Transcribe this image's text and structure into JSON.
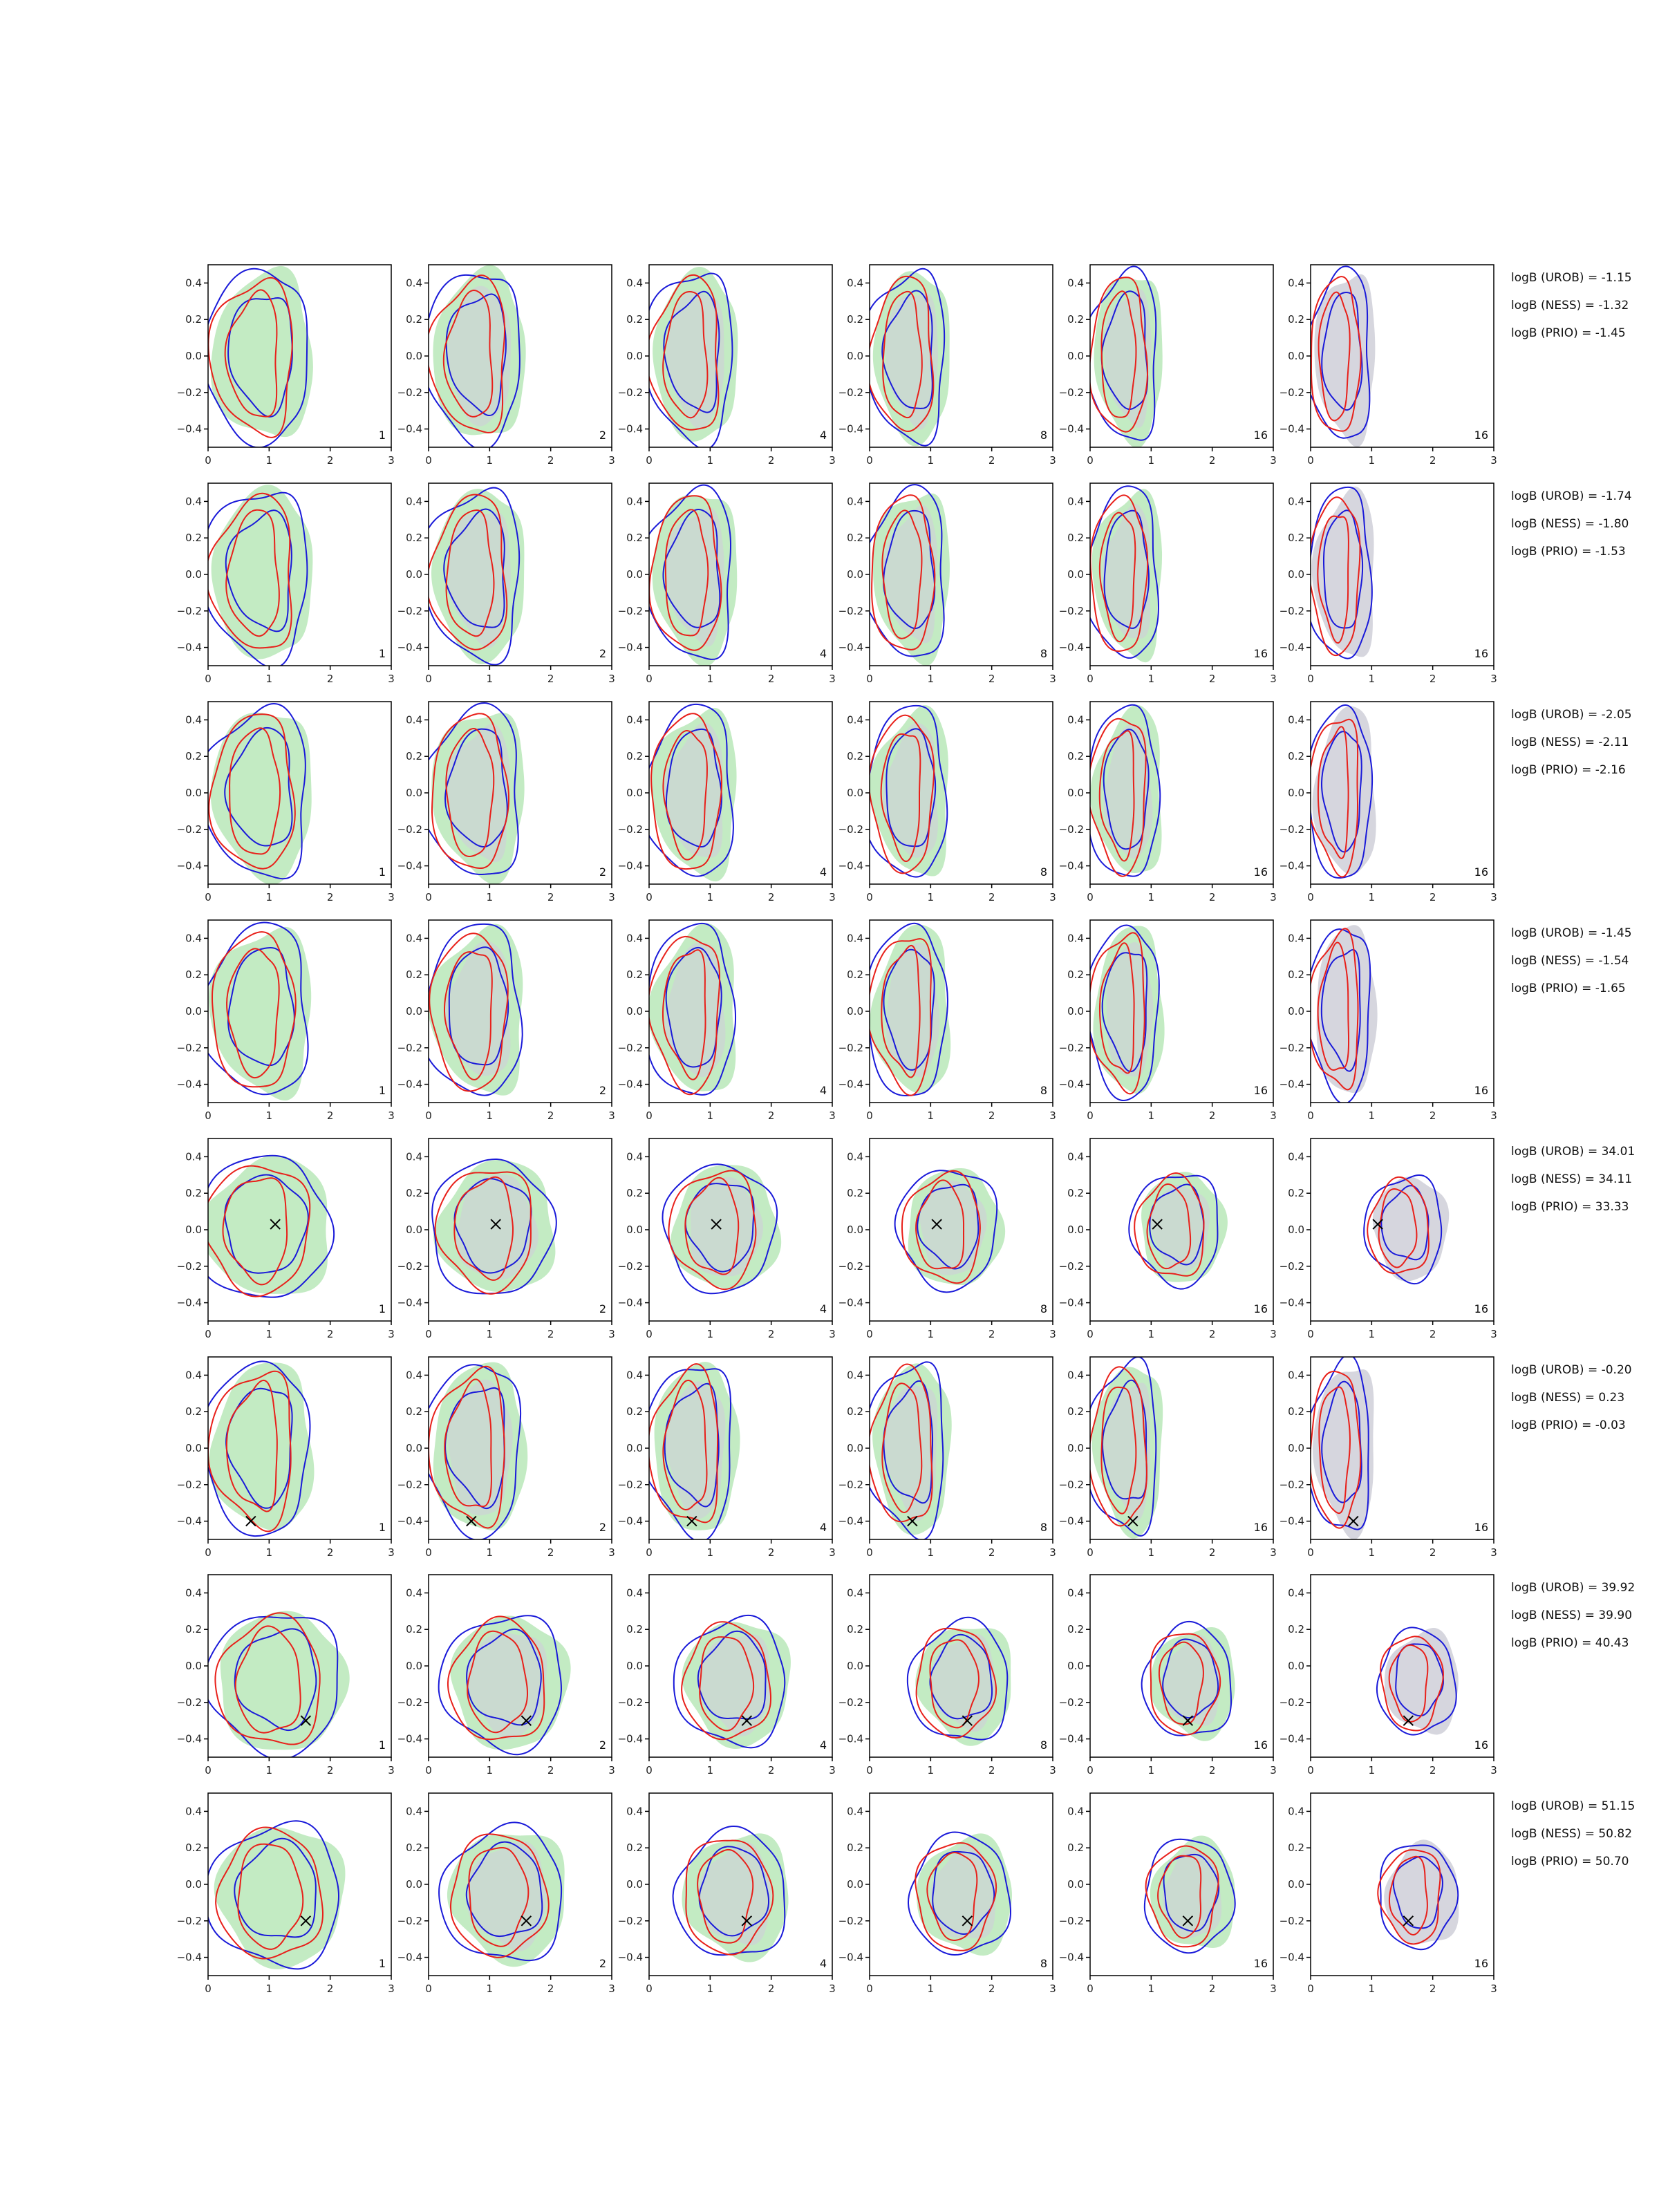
{
  "chart_data": {
    "type": "contour-grid",
    "rows": 8,
    "cols": 6,
    "xlim": [
      0,
      3
    ],
    "ylim": [
      -0.5,
      0.5
    ],
    "xticks": [
      "0",
      "1",
      "2",
      "3"
    ],
    "yticks": [
      "0.4",
      "0.2",
      "0.0",
      "−0.2",
      "−0.4"
    ],
    "colors": {
      "red": "#e8201a",
      "blue": "#1a1ad9",
      "green_fill": "#b8e8b8",
      "gray_fill": "#cfcfd8",
      "axis": "#000000"
    },
    "column_counts": [
      "1",
      "2",
      "4",
      "8",
      "16",
      "16"
    ],
    "rows_data": [
      {
        "marker": null,
        "logB": [
          "logB (UROB) = -1.15",
          "logB (NESS) = -1.32",
          "logB (PRIO) = -1.45"
        ]
      },
      {
        "marker": null,
        "logB": [
          "logB (UROB) = -1.74",
          "logB (NESS) = -1.80",
          "logB (PRIO) = -1.53"
        ]
      },
      {
        "marker": null,
        "logB": [
          "logB (UROB) = -2.05",
          "logB (NESS) = -2.11",
          "logB (PRIO) = -2.16"
        ]
      },
      {
        "marker": null,
        "logB": [
          "logB (UROB) = -1.45",
          "logB (NESS) = -1.54",
          "logB (PRIO) = -1.65"
        ]
      },
      {
        "marker": [
          1.1,
          0.03
        ],
        "logB": [
          "logB (UROB) = 34.01",
          "logB (NESS) = 34.11",
          "logB (PRIO) = 33.33"
        ]
      },
      {
        "marker": [
          0.7,
          -0.4
        ],
        "logB": [
          "logB (UROB) = -0.20",
          "logB (NESS) = 0.23",
          "logB (PRIO) = -0.03"
        ]
      },
      {
        "marker": [
          1.6,
          -0.3
        ],
        "logB": [
          "logB (UROB) = 39.92",
          "logB (NESS) = 39.90",
          "logB (PRIO) = 40.43"
        ]
      },
      {
        "marker": [
          1.6,
          -0.2
        ],
        "logB": [
          "logB (UROB) = 51.15",
          "logB (NESS) = 50.82",
          "logB (PRIO) = 50.70"
        ]
      }
    ]
  }
}
